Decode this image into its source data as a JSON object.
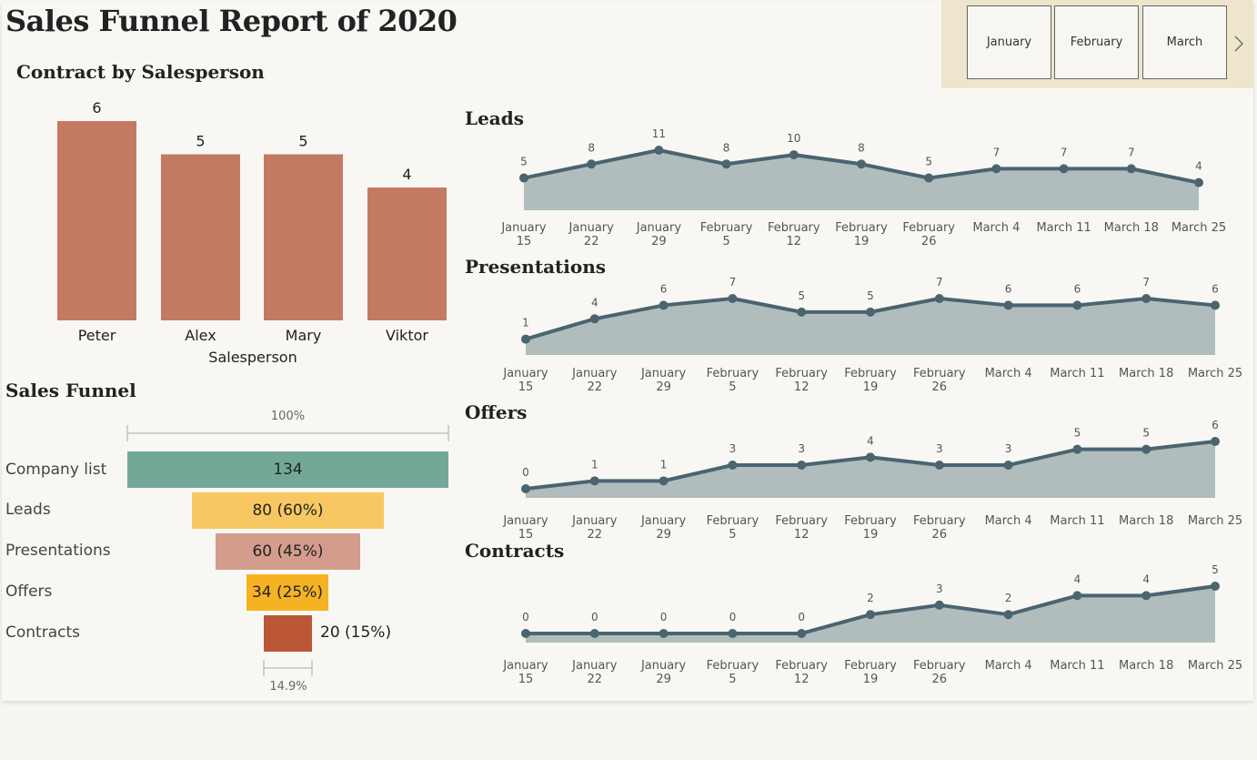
{
  "title": "Sales Funnel Report of 2020",
  "slicer": {
    "months": [
      "January",
      "February",
      "March"
    ],
    "next_icon": "chevron-right-icon"
  },
  "colors": {
    "bar": "#c47a62",
    "line": "#4a6470",
    "area": "#b1bdbd",
    "funnel": [
      "#73a898",
      "#f7c862",
      "#d49c8c",
      "#f5b223",
      "#bb5637"
    ]
  },
  "contract_title": "Contract by Salesperson",
  "funnel_title": "Sales Funnel",
  "funnel": {
    "top_pct": "100%",
    "bottom_pct": "14.9%",
    "stages": [
      {
        "label": "Company list",
        "value": "134"
      },
      {
        "label": "Leads",
        "value": "80 (60%)"
      },
      {
        "label": "Presentations",
        "value": "60 (45%)"
      },
      {
        "label": "Offers",
        "value": "34 (25%)"
      },
      {
        "label": "Contracts",
        "value": "20 (15%)"
      }
    ]
  },
  "chart_data": [
    {
      "type": "bar",
      "title": "Contract by Salesperson",
      "xlabel": "Salesperson",
      "ylabel": "",
      "categories": [
        "Peter",
        "Alex",
        "Mary",
        "Viktor"
      ],
      "values": [
        6,
        5,
        5,
        4
      ],
      "ylim": [
        0,
        6
      ]
    },
    {
      "type": "area",
      "title": "Leads",
      "categories": [
        [
          "January",
          "15"
        ],
        [
          "January",
          "22"
        ],
        [
          "January",
          "29"
        ],
        [
          "February",
          "5"
        ],
        [
          "February",
          "12"
        ],
        [
          "February",
          "19"
        ],
        [
          "February",
          "26"
        ],
        [
          "March 4"
        ],
        [
          "March 11"
        ],
        [
          "March 18"
        ],
        [
          "March 25"
        ]
      ],
      "values": [
        5,
        8,
        11,
        8,
        10,
        8,
        5,
        7,
        7,
        7,
        4
      ]
    },
    {
      "type": "area",
      "title": "Presentations",
      "categories": [
        [
          "January",
          "15"
        ],
        [
          "January",
          "22"
        ],
        [
          "January",
          "29"
        ],
        [
          "February",
          "5"
        ],
        [
          "February",
          "12"
        ],
        [
          "February",
          "19"
        ],
        [
          "February",
          "26"
        ],
        [
          "March 4"
        ],
        [
          "March 11"
        ],
        [
          "March 18"
        ],
        [
          "March 25"
        ]
      ],
      "values": [
        1,
        4,
        6,
        7,
        5,
        5,
        7,
        6,
        6,
        7,
        6
      ]
    },
    {
      "type": "area",
      "title": "Offers",
      "categories": [
        [
          "January",
          "15"
        ],
        [
          "January",
          "22"
        ],
        [
          "January",
          "29"
        ],
        [
          "February",
          "5"
        ],
        [
          "February",
          "12"
        ],
        [
          "February",
          "19"
        ],
        [
          "February",
          "26"
        ],
        [
          "March 4"
        ],
        [
          "March 11"
        ],
        [
          "March 18"
        ],
        [
          "March 25"
        ]
      ],
      "values": [
        0,
        1,
        1,
        3,
        3,
        4,
        3,
        3,
        5,
        5,
        6
      ]
    },
    {
      "type": "area",
      "title": "Contracts",
      "categories": [
        [
          "January",
          "15"
        ],
        [
          "January",
          "22"
        ],
        [
          "January",
          "29"
        ],
        [
          "February",
          "5"
        ],
        [
          "February",
          "12"
        ],
        [
          "February",
          "19"
        ],
        [
          "February",
          "26"
        ],
        [
          "March 4"
        ],
        [
          "March 11"
        ],
        [
          "March 18"
        ],
        [
          "March 25"
        ]
      ],
      "values": [
        0,
        0,
        0,
        0,
        0,
        2,
        3,
        2,
        4,
        4,
        5
      ]
    }
  ]
}
